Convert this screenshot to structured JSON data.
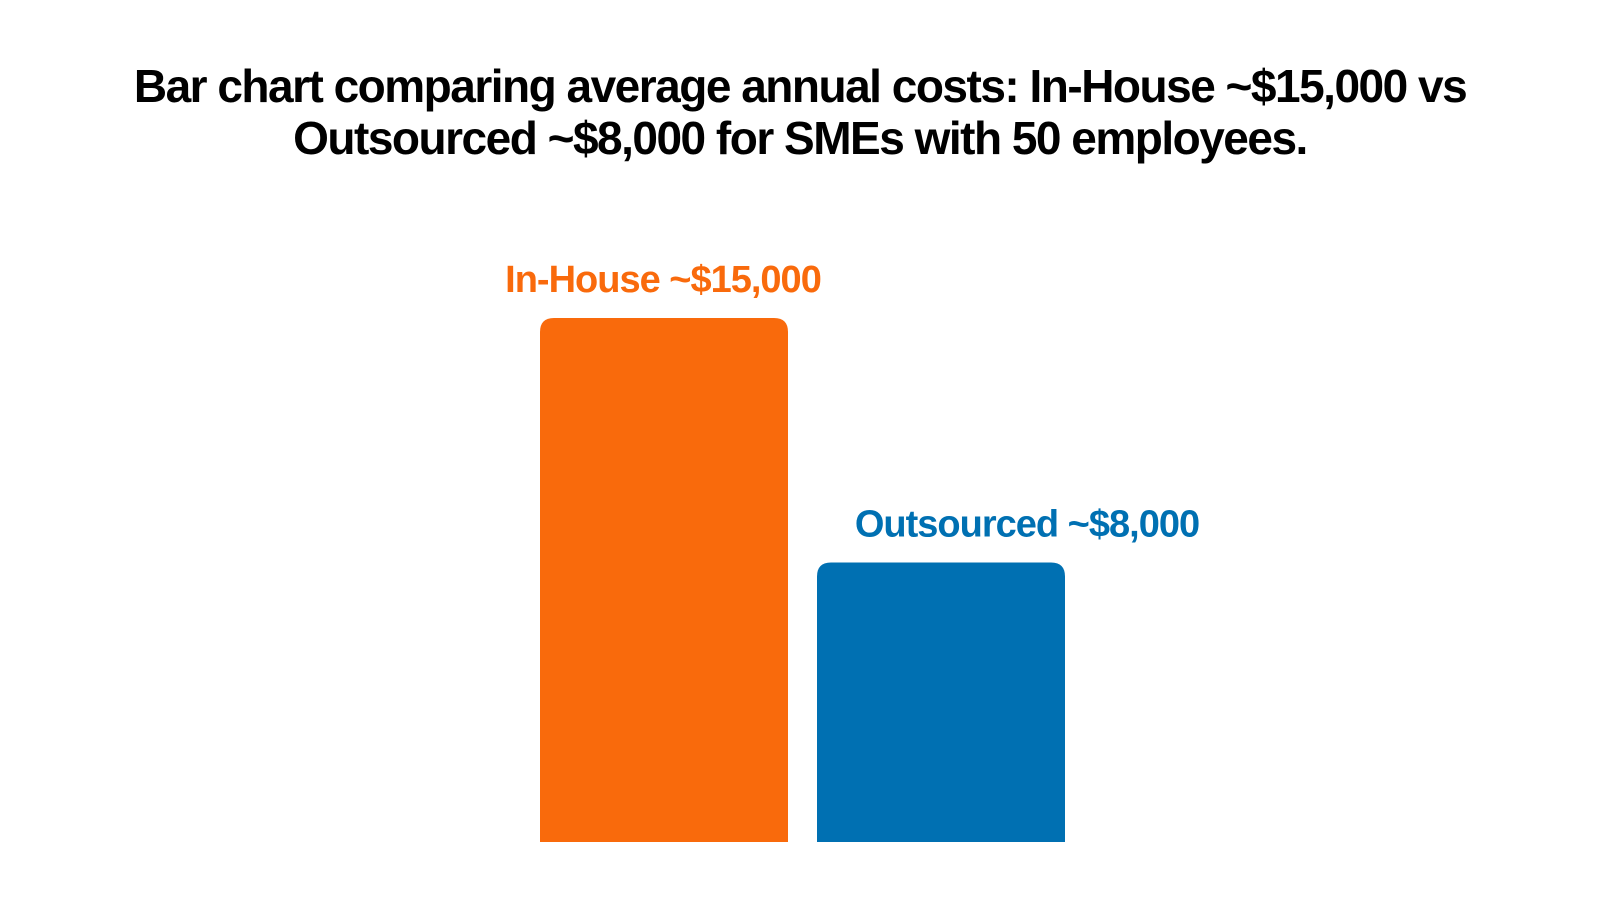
{
  "chart_data": {
    "type": "bar",
    "title_lines": [
      "Bar chart comparing average annual costs: In-House ~$15,000 vs",
      "Outsourced ~$8,000 for SMEs with 50 employees."
    ],
    "categories": [
      "In-House",
      "Outsourced"
    ],
    "values": [
      15000,
      8000
    ],
    "data_labels": [
      "In-House ~$15,000",
      "Outsourced ~$8,000"
    ],
    "colors": [
      "#F96A0C",
      "#0070B2"
    ],
    "ylim": [
      0,
      15000
    ],
    "grid": false,
    "legend": "none",
    "xlabel": "",
    "ylabel": ""
  }
}
